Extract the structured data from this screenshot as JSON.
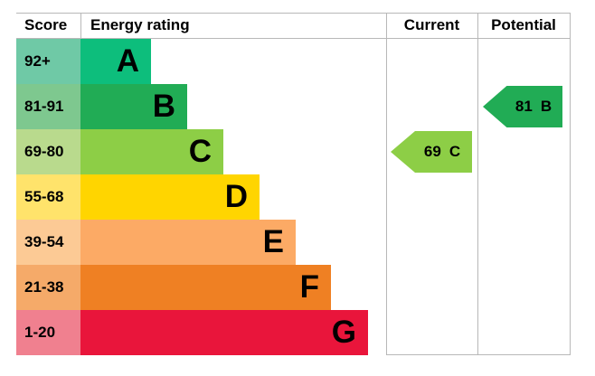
{
  "header": {
    "score": "Score",
    "energy_rating": "Energy rating",
    "current": "Current",
    "potential": "Potential"
  },
  "bands": [
    {
      "score_label": "92+",
      "letter": "A",
      "bar_color": "#0dbe7c",
      "score_bg_color": "#6fc9a6"
    },
    {
      "score_label": "81-91",
      "letter": "B",
      "bar_color": "#21ac55",
      "score_bg_color": "#7ec88f"
    },
    {
      "score_label": "69-80",
      "letter": "C",
      "bar_color": "#8dce46",
      "score_bg_color": "#b9da8d"
    },
    {
      "score_label": "55-68",
      "letter": "D",
      "bar_color": "#ffd500",
      "score_bg_color": "#ffe36b"
    },
    {
      "score_label": "39-54",
      "letter": "E",
      "bar_color": "#fcaa65",
      "score_bg_color": "#fcca95"
    },
    {
      "score_label": "21-38",
      "letter": "F",
      "bar_color": "#ef8023",
      "score_bg_color": "#f5aa69"
    },
    {
      "score_label": "1-20",
      "letter": "G",
      "bar_color": "#e9153b",
      "score_bg_color": "#f0808f"
    }
  ],
  "markers": {
    "current": {
      "score": "69",
      "letter": "C",
      "color": "#8dce46"
    },
    "potential": {
      "score": "81",
      "letter": "B",
      "color": "#21ac55"
    }
  },
  "chart_data": {
    "type": "bar",
    "title": "Energy rating",
    "columns": [
      "Score",
      "Energy rating",
      "Current",
      "Potential"
    ],
    "categories": [
      "A",
      "B",
      "C",
      "D",
      "E",
      "F",
      "G"
    ],
    "score_ranges": [
      "92+",
      "81-91",
      "69-80",
      "55-68",
      "39-54",
      "21-38",
      "1-20"
    ],
    "relative_bar_widths": [
      78,
      118,
      158,
      198,
      238,
      277,
      318
    ],
    "band_colors": [
      "#0dbe7c",
      "#21ac55",
      "#8dce46",
      "#ffd500",
      "#fcaa65",
      "#ef8023",
      "#e9153b"
    ],
    "score_tint_colors": [
      "#6fc9a6",
      "#7ec88f",
      "#b9da8d",
      "#ffe36b",
      "#fcca95",
      "#f5aa69",
      "#f0808f"
    ],
    "current": {
      "score": 69,
      "rating": "C"
    },
    "potential": {
      "score": 81,
      "rating": "B"
    },
    "legend_position": "none",
    "grid": "column-dividers-only"
  }
}
